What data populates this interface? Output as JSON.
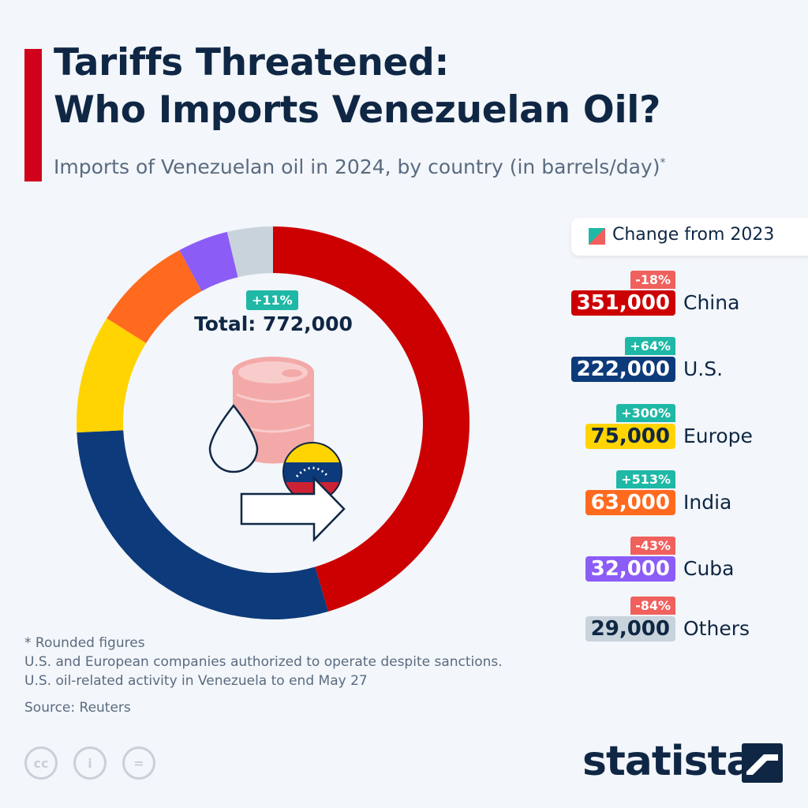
{
  "header": {
    "title_line1": "Tariffs Threatened:",
    "title_line2": "Who Imports Venezuelan Oil?",
    "subtitle": "Imports of Venezuelan oil in 2024, by country (in barrels/day)",
    "subtitle_mark": "*"
  },
  "center": {
    "change": "+11%",
    "total": "Total: 772,000",
    "change_color": "#1fb8a6"
  },
  "legend": {
    "label": "Change from 2023",
    "colors": {
      "positive": "#1fb8a6",
      "negative": "#f0605d"
    }
  },
  "chart_data": {
    "type": "pie",
    "donut": true,
    "title": "Imports of Venezuelan oil in 2024, by country (in barrels/day)",
    "total": 772000,
    "categories": [
      "China",
      "U.S.",
      "Europe",
      "India",
      "Cuba",
      "Others"
    ],
    "values": [
      351000,
      222000,
      75000,
      63000,
      32000,
      29000
    ],
    "labels": [
      "351,000",
      "222,000",
      "75,000",
      "63,000",
      "32,000",
      "29,000"
    ],
    "change_from_2023": [
      "-18%",
      "+64%",
      "+300%",
      "+513%",
      "-43%",
      "-84%"
    ],
    "colors": [
      "#cc0000",
      "#0d3a7a",
      "#ffd400",
      "#ff6a1f",
      "#8b5cf6",
      "#c8d3dc"
    ],
    "value_text_colors": [
      "#ffffff",
      "#ffffff",
      "#0f2744",
      "#ffffff",
      "#ffffff",
      "#0f2744"
    ]
  },
  "footer": {
    "notes": [
      "* Rounded figures",
      "U.S. and European companies authorized to operate despite sanctions.",
      "U.S. oil-related activity in Venezuela to end May 27"
    ],
    "source": "Source: Reuters",
    "cc_icons": [
      "cc-icon",
      "attribution-icon",
      "no-derivatives-icon"
    ],
    "logo": "statista"
  }
}
